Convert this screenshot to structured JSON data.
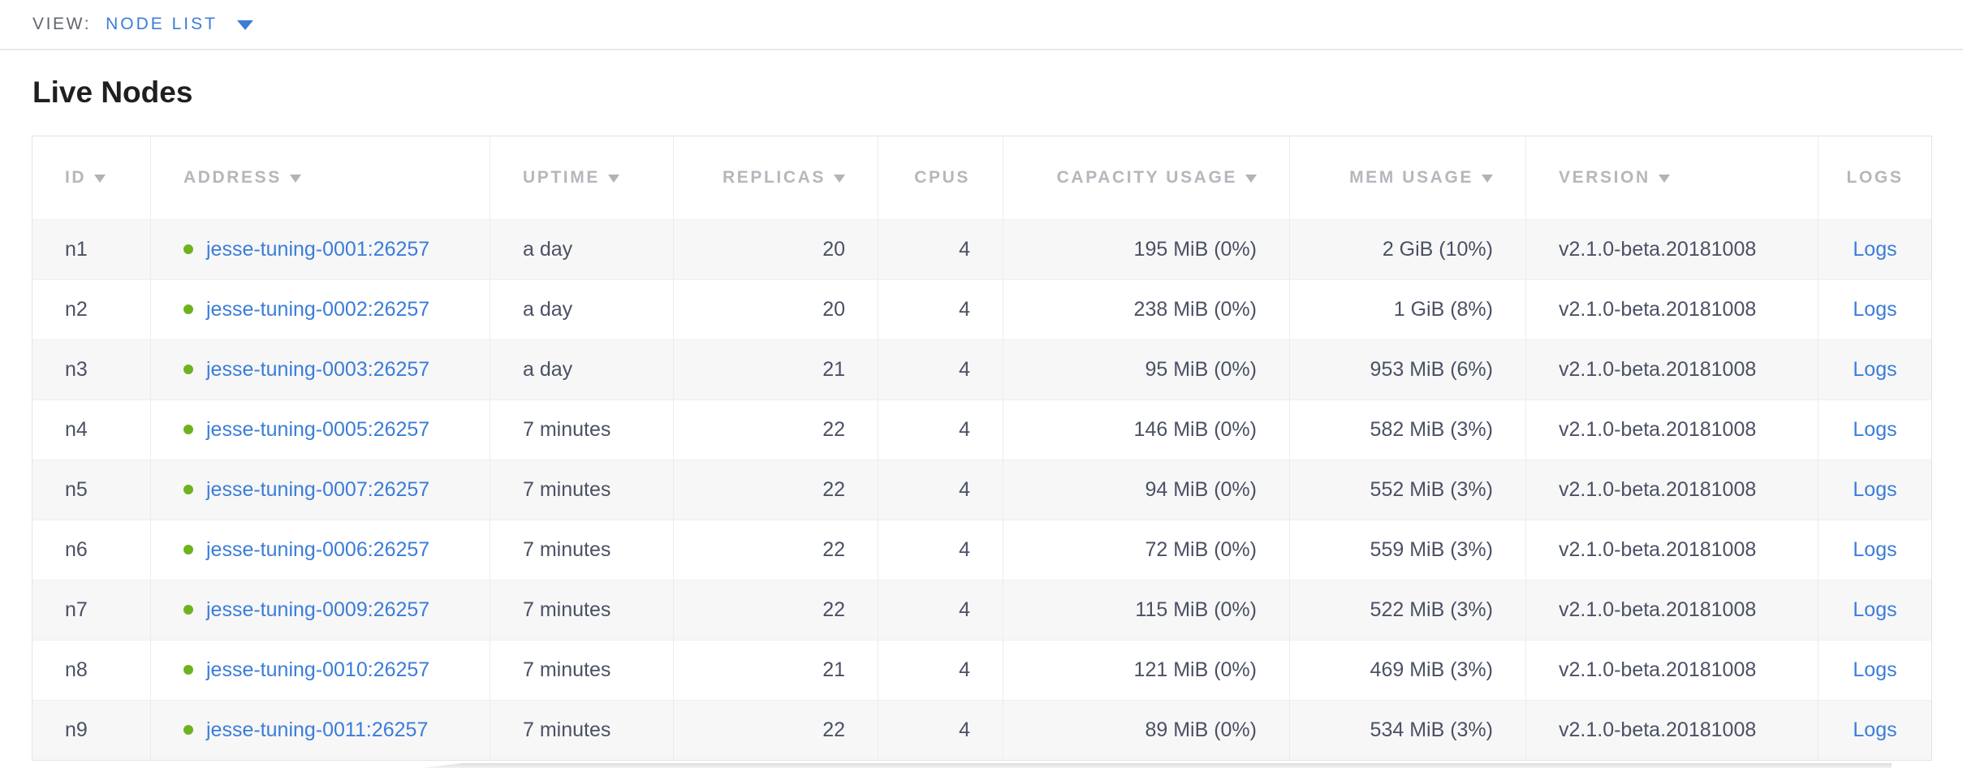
{
  "view_bar": {
    "label": "VIEW:",
    "selected": "NODE LIST"
  },
  "page": {
    "title": "Live Nodes"
  },
  "icons": {
    "dropdown_caret": "triangle-down",
    "sort_indicator": "triangle-down",
    "node_status_healthy": "green-dot"
  },
  "colors": {
    "link_blue": "#3b7dd8",
    "status_green": "#6eb31f",
    "header_gray": "#b4b7bc",
    "cell_text": "#4b5164",
    "row_stripe": "#f7f7f7"
  },
  "table": {
    "columns": [
      {
        "key": "id",
        "label": "ID",
        "sortable": true,
        "align": "left"
      },
      {
        "key": "address",
        "label": "ADDRESS",
        "sortable": true,
        "align": "left"
      },
      {
        "key": "uptime",
        "label": "UPTIME",
        "sortable": true,
        "align": "left"
      },
      {
        "key": "replicas",
        "label": "REPLICAS",
        "sortable": true,
        "align": "right"
      },
      {
        "key": "cpus",
        "label": "CPUS",
        "sortable": false,
        "align": "right"
      },
      {
        "key": "capacity",
        "label": "CAPACITY USAGE",
        "sortable": true,
        "align": "right"
      },
      {
        "key": "mem",
        "label": "MEM USAGE",
        "sortable": true,
        "align": "right"
      },
      {
        "key": "version",
        "label": "VERSION",
        "sortable": true,
        "align": "left"
      },
      {
        "key": "logs",
        "label": "LOGS",
        "sortable": false,
        "align": "center"
      }
    ],
    "rows": [
      {
        "id": "n1",
        "address": "jesse-tuning-0001:26257",
        "uptime": "a day",
        "replicas": "20",
        "cpus": "4",
        "capacity": "195 MiB (0%)",
        "mem": "2 GiB (10%)",
        "version": "v2.1.0-beta.20181008",
        "logs": "Logs"
      },
      {
        "id": "n2",
        "address": "jesse-tuning-0002:26257",
        "uptime": "a day",
        "replicas": "20",
        "cpus": "4",
        "capacity": "238 MiB (0%)",
        "mem": "1 GiB (8%)",
        "version": "v2.1.0-beta.20181008",
        "logs": "Logs"
      },
      {
        "id": "n3",
        "address": "jesse-tuning-0003:26257",
        "uptime": "a day",
        "replicas": "21",
        "cpus": "4",
        "capacity": "95 MiB (0%)",
        "mem": "953 MiB (6%)",
        "version": "v2.1.0-beta.20181008",
        "logs": "Logs"
      },
      {
        "id": "n4",
        "address": "jesse-tuning-0005:26257",
        "uptime": "7 minutes",
        "replicas": "22",
        "cpus": "4",
        "capacity": "146 MiB (0%)",
        "mem": "582 MiB (3%)",
        "version": "v2.1.0-beta.20181008",
        "logs": "Logs"
      },
      {
        "id": "n5",
        "address": "jesse-tuning-0007:26257",
        "uptime": "7 minutes",
        "replicas": "22",
        "cpus": "4",
        "capacity": "94 MiB (0%)",
        "mem": "552 MiB (3%)",
        "version": "v2.1.0-beta.20181008",
        "logs": "Logs"
      },
      {
        "id": "n6",
        "address": "jesse-tuning-0006:26257",
        "uptime": "7 minutes",
        "replicas": "22",
        "cpus": "4",
        "capacity": "72 MiB (0%)",
        "mem": "559 MiB (3%)",
        "version": "v2.1.0-beta.20181008",
        "logs": "Logs"
      },
      {
        "id": "n7",
        "address": "jesse-tuning-0009:26257",
        "uptime": "7 minutes",
        "replicas": "22",
        "cpus": "4",
        "capacity": "115 MiB (0%)",
        "mem": "522 MiB (3%)",
        "version": "v2.1.0-beta.20181008",
        "logs": "Logs"
      },
      {
        "id": "n8",
        "address": "jesse-tuning-0010:26257",
        "uptime": "7 minutes",
        "replicas": "21",
        "cpus": "4",
        "capacity": "121 MiB (0%)",
        "mem": "469 MiB (3%)",
        "version": "v2.1.0-beta.20181008",
        "logs": "Logs"
      },
      {
        "id": "n9",
        "address": "jesse-tuning-0011:26257",
        "uptime": "7 minutes",
        "replicas": "22",
        "cpus": "4",
        "capacity": "89 MiB (0%)",
        "mem": "534 MiB (3%)",
        "version": "v2.1.0-beta.20181008",
        "logs": "Logs"
      }
    ]
  }
}
